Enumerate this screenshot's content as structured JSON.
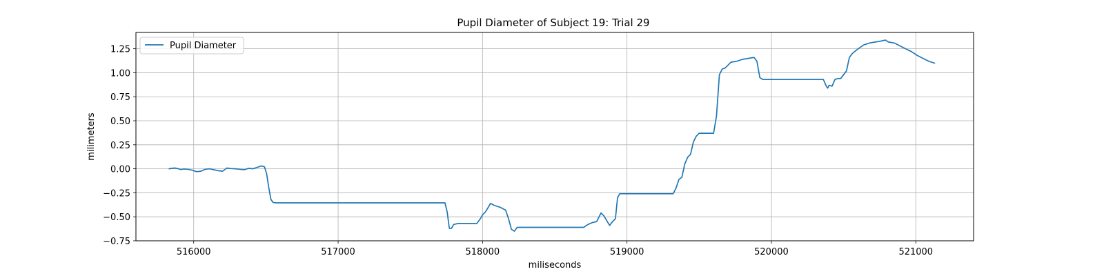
{
  "chart_data": {
    "type": "line",
    "title": "Pupil Diameter of Subject 19: Trial 29",
    "xlabel": "miliseconds",
    "ylabel": "milimeters",
    "xlim": [
      515600,
      521400
    ],
    "ylim": [
      -0.75,
      1.42
    ],
    "xticks": [
      516000,
      517000,
      518000,
      519000,
      520000,
      521000
    ],
    "xtick_labels": [
      "516000",
      "517000",
      "518000",
      "519000",
      "520000",
      "521000"
    ],
    "yticks": [
      -0.75,
      -0.5,
      -0.25,
      0.0,
      0.25,
      0.5,
      0.75,
      1.0,
      1.25
    ],
    "ytick_labels": [
      "−0.75",
      "−0.50",
      "−0.25",
      "0.00",
      "0.25",
      "0.50",
      "0.75",
      "1.00",
      "1.25"
    ],
    "grid": true,
    "legend_position": "top-left",
    "colors": {
      "series": "#1f77b4",
      "grid": "#b0b0b0",
      "axes": "#000000"
    },
    "series": [
      {
        "name": "Pupil Diameter",
        "x": [
          515830,
          515850,
          515870,
          515890,
          515910,
          515930,
          515960,
          515990,
          516020,
          516050,
          516080,
          516110,
          516140,
          516170,
          516200,
          516230,
          516260,
          516290,
          516320,
          516350,
          516380,
          516410,
          516440,
          516470,
          516490,
          516505,
          516520,
          516535,
          516550,
          516570,
          517000,
          517500,
          517740,
          517755,
          517770,
          517785,
          517800,
          517830,
          517900,
          517960,
          517985,
          518000,
          518020,
          518040,
          518055,
          518080,
          518120,
          518160,
          518180,
          518200,
          518220,
          518240,
          518300,
          518500,
          518700,
          518730,
          518760,
          518790,
          518820,
          518840,
          518860,
          518880,
          518900,
          518920,
          518935,
          518950,
          518970,
          519000,
          519200,
          519320,
          519340,
          519360,
          519380,
          519400,
          519420,
          519440,
          519460,
          519480,
          519500,
          519540,
          519600,
          519620,
          519640,
          519660,
          519680,
          519700,
          519720,
          519760,
          519800,
          519840,
          519880,
          519900,
          519920,
          519940,
          519960,
          520000,
          520200,
          520360,
          520380,
          520390,
          520400,
          520420,
          520440,
          520460,
          520480,
          520520,
          520540,
          520560,
          520600,
          520640,
          520680,
          520720,
          520760,
          520790,
          520810,
          520850,
          520890,
          520930,
          520970,
          521010,
          521050,
          521090,
          521130
        ],
        "y": [
          0.0,
          0.005,
          0.008,
          0.002,
          -0.008,
          -0.002,
          -0.005,
          -0.015,
          -0.03,
          -0.025,
          -0.005,
          0.0,
          -0.01,
          -0.02,
          -0.025,
          0.008,
          0.002,
          0.0,
          -0.005,
          -0.01,
          0.005,
          0.0,
          0.015,
          0.03,
          0.02,
          -0.05,
          -0.2,
          -0.32,
          -0.35,
          -0.355,
          -0.355,
          -0.355,
          -0.355,
          -0.45,
          -0.62,
          -0.62,
          -0.58,
          -0.57,
          -0.57,
          -0.57,
          -0.52,
          -0.48,
          -0.45,
          -0.4,
          -0.36,
          -0.38,
          -0.4,
          -0.43,
          -0.52,
          -0.63,
          -0.65,
          -0.61,
          -0.61,
          -0.61,
          -0.61,
          -0.58,
          -0.56,
          -0.55,
          -0.46,
          -0.49,
          -0.54,
          -0.59,
          -0.55,
          -0.52,
          -0.3,
          -0.26,
          -0.26,
          -0.26,
          -0.26,
          -0.26,
          -0.2,
          -0.11,
          -0.09,
          0.05,
          0.12,
          0.15,
          0.28,
          0.34,
          0.37,
          0.37,
          0.37,
          0.55,
          0.98,
          1.04,
          1.05,
          1.08,
          1.11,
          1.12,
          1.14,
          1.15,
          1.16,
          1.12,
          0.95,
          0.93,
          0.93,
          0.93,
          0.93,
          0.93,
          0.86,
          0.84,
          0.87,
          0.86,
          0.93,
          0.94,
          0.94,
          1.02,
          1.16,
          1.2,
          1.25,
          1.29,
          1.31,
          1.32,
          1.33,
          1.34,
          1.32,
          1.31,
          1.28,
          1.25,
          1.22,
          1.18,
          1.15,
          1.12,
          1.1
        ]
      }
    ]
  }
}
